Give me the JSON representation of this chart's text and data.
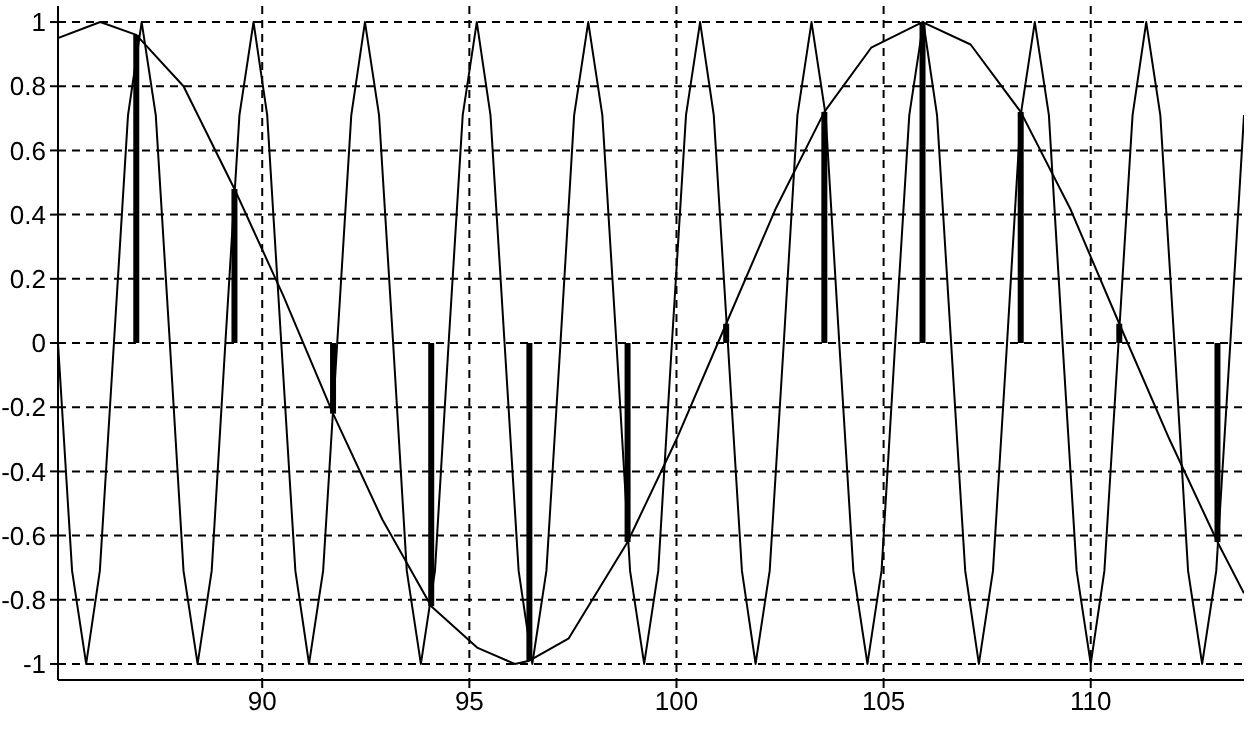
{
  "chart_data": {
    "type": "line",
    "xlim": [
      85.07,
      113.7
    ],
    "ylim": [
      -1.05,
      1.05
    ],
    "xticks": [
      90,
      95,
      100,
      105,
      110
    ],
    "yticks": [
      -1,
      -0.8,
      -0.6,
      -0.4,
      -0.2,
      0,
      0.2,
      0.4,
      0.6,
      0.8,
      1
    ],
    "grid": true,
    "legend": false,
    "marker": "none",
    "series": [
      {
        "color": "#000000",
        "x": [
          85.07,
          85.41,
          85.75,
          86.08,
          86.42,
          86.76,
          87.09,
          87.43,
          87.77,
          88.1,
          88.44,
          88.78,
          89.11,
          89.45,
          89.79,
          90.12,
          90.46,
          90.8,
          91.13,
          91.47,
          91.81,
          92.15,
          92.48,
          92.82,
          93.16,
          93.49,
          93.83,
          94.17,
          94.5,
          94.84,
          95.18,
          95.51,
          95.85,
          96.19,
          96.52,
          96.86,
          97.2,
          97.53,
          97.87,
          98.21,
          98.55,
          98.88,
          99.22,
          99.56,
          99.89,
          100.23,
          100.57,
          100.9,
          101.24,
          101.58,
          101.91,
          102.25,
          102.59,
          102.92,
          103.26,
          103.6,
          103.93,
          104.27,
          104.61,
          104.95,
          105.28,
          105.62,
          105.96,
          106.29,
          106.63,
          106.97,
          107.3,
          107.64,
          107.98,
          108.31,
          108.65,
          108.99,
          109.32,
          109.66,
          110.0,
          110.33,
          110.67,
          111.01,
          111.34,
          111.68,
          112.02,
          112.35,
          112.69,
          113.03,
          113.37,
          113.7
        ],
        "values": [
          0,
          -0.71,
          -1,
          -0.71,
          0,
          0.71,
          1,
          0.71,
          0,
          -0.71,
          -1,
          -0.71,
          0,
          0.71,
          1,
          0.71,
          0,
          -0.71,
          -1,
          -0.71,
          0,
          0.71,
          1,
          0.71,
          0,
          -0.71,
          -1,
          -0.71,
          0,
          0.71,
          1,
          0.71,
          0,
          -0.71,
          -1,
          -0.71,
          0,
          0.71,
          1,
          0.71,
          0,
          -0.71,
          -1,
          -0.71,
          0,
          0.71,
          1,
          0.71,
          0,
          -0.71,
          -1,
          -0.71,
          0,
          0.71,
          1,
          0.71,
          0,
          -0.71,
          -1,
          -0.71,
          0,
          0.71,
          1,
          0.71,
          0,
          -0.71,
          -1,
          -0.71,
          0,
          0.71,
          1,
          0.71,
          0,
          -0.71,
          -1,
          -0.71,
          0,
          0.71,
          1,
          0.71,
          0,
          -0.71,
          -1,
          -0.71,
          0,
          0.71
        ]
      },
      {
        "color": "#000000",
        "x": [
          85.07,
          86.09,
          86.96,
          88.1,
          89.33,
          90.5,
          91.71,
          92.9,
          94.08,
          95.2,
          96.1,
          96.45,
          97.4,
          98.82,
          100,
          101.2,
          102.4,
          103.57,
          104.7,
          105.94,
          107.1,
          108.31,
          109.5,
          110.69,
          111.9,
          113.06,
          113.7
        ],
        "values": [
          0.95,
          1,
          0.96,
          0.8,
          0.48,
          0.15,
          -0.22,
          -0.55,
          -0.82,
          -0.95,
          -1,
          -0.99,
          -0.92,
          -0.62,
          -0.3,
          0.06,
          0.42,
          0.72,
          0.92,
          1,
          0.93,
          0.72,
          0.42,
          0.06,
          -0.3,
          -0.62,
          -0.78
        ]
      },
      {
        "type": "bar",
        "color": "#000000",
        "x": [
          86.96,
          89.33,
          91.71,
          94.08,
          96.45,
          98.82,
          101.2,
          103.57,
          105.94,
          108.31,
          110.69,
          113.06
        ],
        "values": [
          0.96,
          0.48,
          -0.22,
          -0.82,
          -0.99,
          -0.62,
          0.06,
          0.72,
          1,
          0.72,
          0.06,
          -0.62
        ]
      }
    ]
  }
}
